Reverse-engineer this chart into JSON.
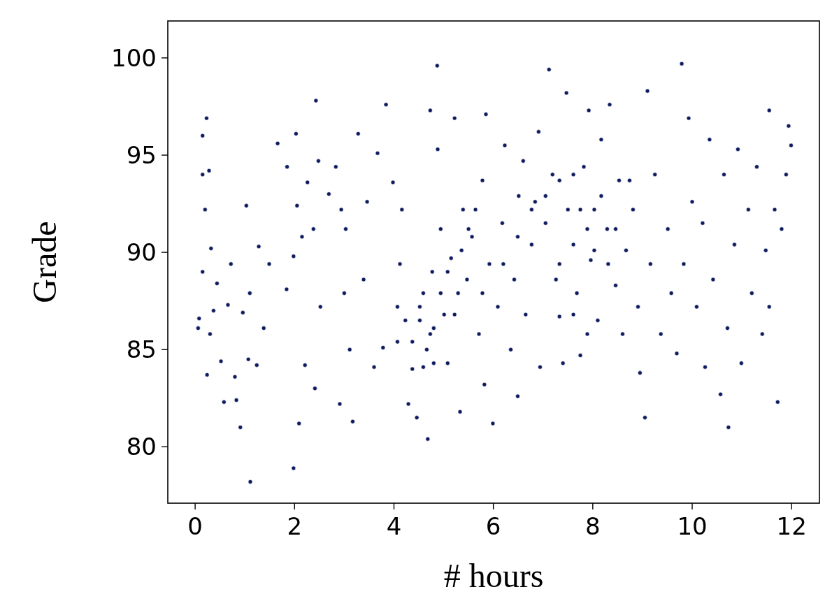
{
  "chart_data": {
    "type": "scatter",
    "xlabel": "# hours",
    "ylabel": "Grade",
    "xlim": [
      -0.55,
      12.56
    ],
    "ylim": [
      77.1,
      101.9
    ],
    "xticks": [
      0,
      2,
      4,
      6,
      8,
      10,
      12
    ],
    "yticks": [
      80,
      85,
      90,
      95,
      100
    ],
    "grid": false,
    "marker": "circle",
    "series": [
      {
        "color": "#0d1a5e",
        "x": [
          0.06,
          0.23,
          0.15,
          0.15,
          0.28,
          0.2,
          0.15,
          0.08,
          0.24,
          0.32,
          0.37,
          0.3,
          0.44,
          0.52,
          0.58,
          0.66,
          0.72,
          0.8,
          0.83,
          0.91,
          0.96,
          1.03,
          1.07,
          1.11,
          1.1,
          1.24,
          1.28,
          1.38,
          1.49,
          1.66,
          1.84,
          1.85,
          1.98,
          1.98,
          2.05,
          2.09,
          2.03,
          2.15,
          2.26,
          2.38,
          2.43,
          2.48,
          2.21,
          2.41,
          2.52,
          2.69,
          2.83,
          2.94,
          2.91,
          3.0,
          3.03,
          3.11,
          3.17,
          3.28,
          3.39,
          3.46,
          3.6,
          3.67,
          3.84,
          3.78,
          3.98,
          4.07,
          4.07,
          4.12,
          4.16,
          4.29,
          4.37,
          4.46,
          4.52,
          4.59,
          4.68,
          4.73,
          4.73,
          4.77,
          4.87,
          4.88,
          4.94,
          5.01,
          5.08,
          5.15,
          5.22,
          5.29,
          5.33,
          5.39,
          5.47,
          5.57,
          5.71,
          5.78,
          5.85,
          5.82,
          5.92,
          5.99,
          6.09,
          6.18,
          6.23,
          6.35,
          6.42,
          6.49,
          6.51,
          6.6,
          6.65,
          6.77,
          6.84,
          6.91,
          6.94,
          7.05,
          7.12,
          7.19,
          7.26,
          7.33,
          7.4,
          7.47,
          7.5,
          7.61,
          7.68,
          7.75,
          7.82,
          7.92,
          7.96,
          8.03,
          8.1,
          8.17,
          8.29,
          8.34,
          8.46,
          8.53,
          8.6,
          8.67,
          8.81,
          8.91,
          8.95,
          9.05,
          9.1,
          9.16,
          9.25,
          9.37,
          9.51,
          9.58,
          9.69,
          9.79,
          9.83,
          9.93,
          10.0,
          10.09,
          10.21,
          10.26,
          10.35,
          10.42,
          10.57,
          10.64,
          10.71,
          10.73,
          10.85,
          10.92,
          10.99,
          11.13,
          11.2,
          11.3,
          11.41,
          11.48,
          11.55,
          11.66,
          11.72,
          11.8,
          11.89,
          11.94,
          11.99,
          11.55,
          4.23,
          4.37,
          4.52,
          4.66,
          4.8,
          4.94,
          5.08,
          5.22,
          5.36,
          5.5,
          5.64,
          5.78,
          4.8,
          4.59,
          6.2,
          6.49,
          6.77,
          7.05,
          7.33,
          7.61,
          7.75,
          7.89,
          8.03,
          8.17,
          8.31,
          8.46,
          7.61,
          7.89,
          7.33,
          8.74
        ],
        "values": [
          86.1,
          96.9,
          96.0,
          94.0,
          94.2,
          92.2,
          89.0,
          86.6,
          83.7,
          90.2,
          87.0,
          85.8,
          88.4,
          84.4,
          82.3,
          87.3,
          89.4,
          83.6,
          82.4,
          81.0,
          86.9,
          92.4,
          84.5,
          78.2,
          87.9,
          84.2,
          90.3,
          86.1,
          89.4,
          95.6,
          88.1,
          94.4,
          89.8,
          78.9,
          92.4,
          81.2,
          96.1,
          90.8,
          93.6,
          91.2,
          97.8,
          94.7,
          84.2,
          83.0,
          87.2,
          93.0,
          94.4,
          92.2,
          82.2,
          87.9,
          91.2,
          85.0,
          81.3,
          96.1,
          88.6,
          92.6,
          84.1,
          95.1,
          97.6,
          85.1,
          93.6,
          85.4,
          87.2,
          89.4,
          92.2,
          82.2,
          84.0,
          81.5,
          86.5,
          87.9,
          80.4,
          85.8,
          97.3,
          89.0,
          99.6,
          95.3,
          91.2,
          86.8,
          84.3,
          89.7,
          96.9,
          87.9,
          81.8,
          92.2,
          88.6,
          90.8,
          85.8,
          93.7,
          97.1,
          83.2,
          89.4,
          81.2,
          87.2,
          91.5,
          95.5,
          85.0,
          88.6,
          82.6,
          92.9,
          94.7,
          86.8,
          90.4,
          92.6,
          96.2,
          84.1,
          91.5,
          99.4,
          94.0,
          88.6,
          86.7,
          84.3,
          98.2,
          92.2,
          90.4,
          87.9,
          84.7,
          94.4,
          97.3,
          89.6,
          92.2,
          86.5,
          95.8,
          91.2,
          97.6,
          88.3,
          93.7,
          85.8,
          90.1,
          92.2,
          87.2,
          83.8,
          81.5,
          98.3,
          89.4,
          94.0,
          85.8,
          91.2,
          87.9,
          84.8,
          99.7,
          89.4,
          96.9,
          92.6,
          87.2,
          91.5,
          84.1,
          95.8,
          88.6,
          82.7,
          94.0,
          86.1,
          81.0,
          90.4,
          95.3,
          84.3,
          92.2,
          87.9,
          94.4,
          85.8,
          90.1,
          97.3,
          92.2,
          82.3,
          91.2,
          94.0,
          96.5,
          95.5,
          87.2,
          86.5,
          85.4,
          87.2,
          85.0,
          86.1,
          87.9,
          89.0,
          86.8,
          90.1,
          91.2,
          92.2,
          87.9,
          84.3,
          84.1,
          89.4,
          90.8,
          92.2,
          92.9,
          93.7,
          94.0,
          92.2,
          91.2,
          90.1,
          92.9,
          89.4,
          91.2,
          86.8,
          85.8,
          89.4,
          93.7
        ]
      }
    ]
  }
}
